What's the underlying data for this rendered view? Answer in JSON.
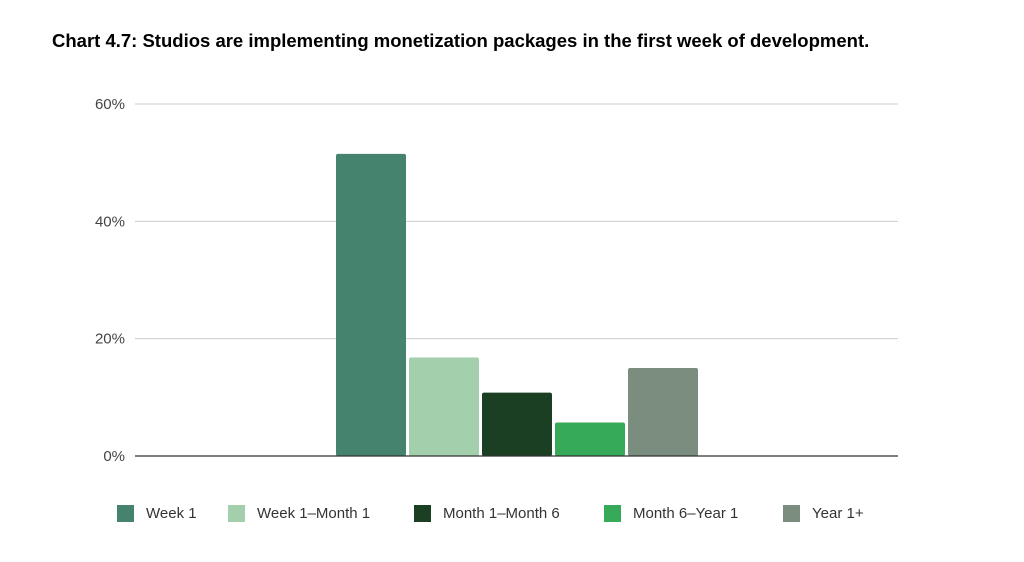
{
  "title": "Chart 4.7: Studios are implementing monetization packages in the first week of development.",
  "chart_data": {
    "type": "bar",
    "title": "Chart 4.7: Studios are implementing monetization packages in the first week of development.",
    "xlabel": "",
    "ylabel": "",
    "ylim": [
      0,
      60
    ],
    "yticks": [
      "0%",
      "20%",
      "40%",
      "60%"
    ],
    "ytick_values": [
      0,
      20,
      40,
      60
    ],
    "grid": true,
    "legend_position": "bottom",
    "series": [
      {
        "name": "Week 1",
        "value": 51.5,
        "color": "#46836f"
      },
      {
        "name": "Week 1–Month 1",
        "value": 16.8,
        "color": "#a3cfac"
      },
      {
        "name": "Month 1–Month 6",
        "value": 10.8,
        "color": "#1b3f22"
      },
      {
        "name": "Month 6–Year 1",
        "value": 5.7,
        "color": "#37aa59"
      },
      {
        "name": "Year 1+",
        "value": 15.0,
        "color": "#7b8d7f"
      }
    ]
  }
}
